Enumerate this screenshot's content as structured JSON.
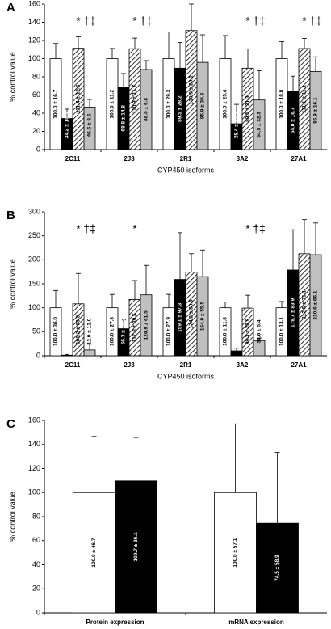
{
  "chart_data": [
    {
      "type": "bar",
      "panel": "A",
      "ylabel": "% control value",
      "xlabel": "CYP450 isoforms",
      "categories": [
        "2C11",
        "2J3",
        "2R1",
        "3A2",
        "27A1"
      ],
      "ylim": [
        0,
        160
      ],
      "yticks": [
        0,
        20,
        40,
        60,
        80,
        100,
        120,
        140,
        160
      ],
      "series": [
        {
          "color": "#ffffff",
          "values": [
            100.0,
            100.0,
            100.0,
            100.0,
            100.0
          ],
          "errors": [
            16.7,
            11.2,
            29.3,
            25.4,
            18.8
          ],
          "value_labels": [
            "100.0 ± 16.7",
            "100.0 ± 11.2",
            "100.0 ± 29.3",
            "100.0 ± 25.4",
            "100.0 ± 18.8"
          ]
        },
        {
          "color": "#000000",
          "values": [
            34.2,
            68.8,
            89.5,
            28.4,
            64.0
          ],
          "errors": [
            10.3,
            14.8,
            28.2,
            21.3,
            16.7
          ],
          "value_labels": [
            "34.2 ± 10.3",
            "68.8 ± 14.8",
            "89.5 ± 28.2",
            "28.4 ± 21.3",
            "64.0 ± 16.7"
          ]
        },
        {
          "color": "#ffffff",
          "pattern": "hatch",
          "values": [
            111.4,
            110.9,
            130.9,
            89.5,
            111.1
          ],
          "errors": [
            12.5,
            11.7,
            29.1,
            21.3,
            11.1
          ],
          "value_labels": [
            "111.4 ± 12.5",
            "110.9 ± 11.7",
            "130.9 ± 29.1",
            "89.5 ± 21.3",
            "111.1 ± 11.1"
          ],
          "annotations": [
            "*",
            "*",
            null,
            "*",
            "*"
          ]
        },
        {
          "color": "#c0c0c0",
          "values": [
            46.6,
            88.0,
            95.9,
            54.5,
            85.9
          ],
          "errors": [
            8.5,
            9.8,
            30.3,
            32.3,
            16.1
          ],
          "value_labels": [
            "46.6 ± 8.5",
            "88.0 ± 9.8",
            "95.9 ± 30.3",
            "54.5 ± 32.3",
            "85.9 ± 16.1"
          ],
          "annotations": [
            "†‡",
            "†‡",
            null,
            "†‡",
            "†‡"
          ]
        }
      ]
    },
    {
      "type": "bar",
      "panel": "B",
      "ylabel": "% control value",
      "xlabel": "CYP450 isoforms",
      "categories": [
        "2C11",
        "2J3",
        "2R1",
        "3A2",
        "27A1"
      ],
      "ylim": [
        0,
        300
      ],
      "yticks": [
        0,
        50,
        100,
        150,
        200,
        250,
        300
      ],
      "series": [
        {
          "color": "#ffffff",
          "values": [
            100.0,
            100.0,
            100.0,
            100.0,
            100.0
          ],
          "errors": [
            36.0,
            27.8,
            27.9,
            11.8,
            13.1
          ],
          "value_labels": [
            "100.0 ± 36.0",
            "100.0 ± 27.8",
            "100.0 ± 27.9",
            "100.0 ± 11.8",
            "100.0 ± 13.1"
          ]
        },
        {
          "color": "#000000",
          "values": [
            1.2,
            56.3,
            159.1,
            10.1,
            178.7
          ],
          "errors": [
            1.6,
            18.3,
            97.3,
            5.5,
            83.9
          ],
          "value_labels": [
            "1.2 ± 1.6",
            "56.3 ± 18.3",
            "159.1 ± 97.3",
            "10.1 ± 5.5",
            "178.7 ± 83.9"
          ]
        },
        {
          "color": "#ffffff",
          "pattern": "hatch",
          "values": [
            108.2,
            117.3,
            174.2,
            99.3,
            212.6
          ],
          "errors": [
            63.3,
            39.5,
            38.5,
            26.9,
            71.1
          ],
          "value_labels": [
            "108.2 ± 63.3",
            "117.3 ± 39.5",
            "174.2 ± 38.5",
            "99.3 ± 26.9",
            "212.6 ± 71.1"
          ],
          "annotations": [
            "*",
            "*",
            null,
            "*",
            null
          ]
        },
        {
          "color": "#c0c0c0",
          "values": [
            12.0,
            126.9,
            164.9,
            31.6,
            210.6
          ],
          "errors": [
            12.0,
            61.5,
            55.5,
            5.4,
            66.1
          ],
          "value_labels": [
            "12.0 ± 12.0",
            "126.9 ± 61.5",
            "164.9 ± 55.5",
            "31.6 ± 5.4",
            "210.6 ± 66.1"
          ],
          "annotations": [
            "†‡",
            null,
            null,
            "†‡",
            null
          ]
        }
      ]
    },
    {
      "type": "bar",
      "panel": "C",
      "ylabel": "% control value",
      "categories": [
        "Protein expression",
        "mRNA expression"
      ],
      "ylim": [
        0,
        160
      ],
      "yticks": [
        0,
        20,
        40,
        60,
        80,
        100,
        120,
        140,
        160
      ],
      "series": [
        {
          "color": "#ffffff",
          "values": [
            100.0,
            100.0
          ],
          "errors": [
            46.7,
            57.1
          ],
          "value_labels": [
            "100.0 ± 46.7",
            "100.0 ± 57.1"
          ]
        },
        {
          "color": "#000000",
          "values": [
            109.7,
            74.5
          ],
          "errors": [
            36.1,
            58.9
          ],
          "value_labels": [
            "109.7 ± 36.1",
            "74.5 ± 58.9"
          ]
        }
      ]
    }
  ]
}
